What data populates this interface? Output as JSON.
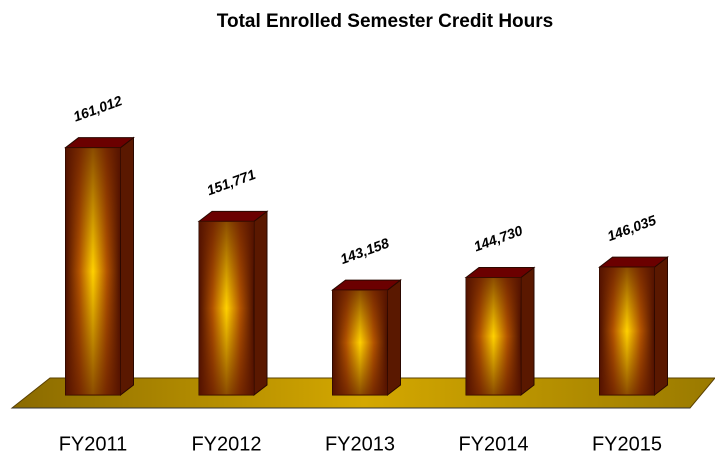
{
  "chart_data": {
    "type": "bar3d",
    "title": "Total Enrolled Semester Credit Hours",
    "categories": [
      "FY2011",
      "FY2012",
      "FY2013",
      "FY2014",
      "FY2015"
    ],
    "values": [
      161012,
      151771,
      143158,
      144730,
      146035
    ],
    "value_labels": [
      "161,012",
      "151,771",
      "143,158",
      "144,730",
      "146,035"
    ],
    "ylim": [
      130000,
      170000
    ],
    "color": "#ffcc00"
  }
}
